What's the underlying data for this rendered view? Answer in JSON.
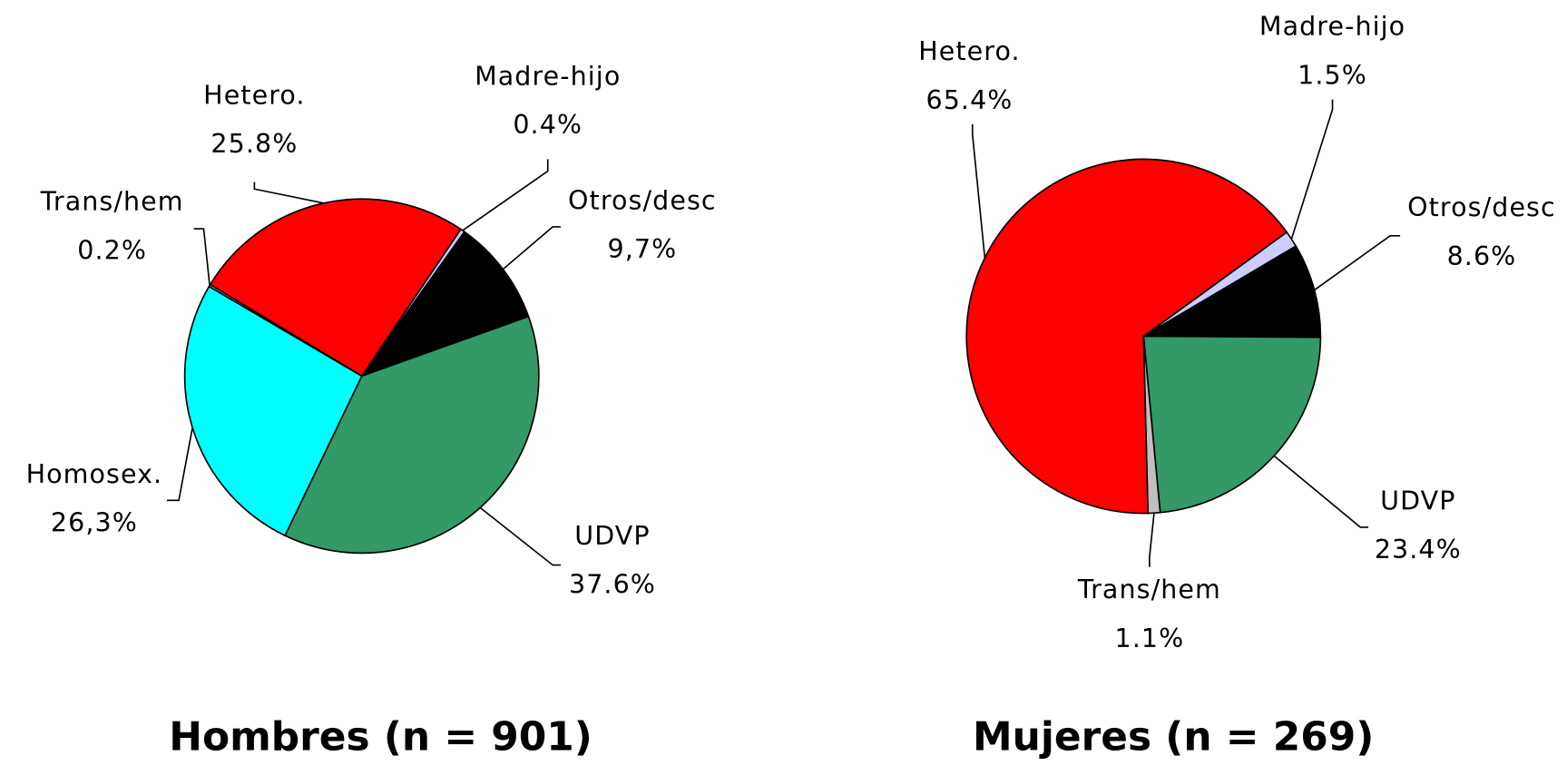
{
  "chart_data": [
    {
      "type": "pie",
      "title": "Hombres (n = 901)",
      "categories": [
        "Madre-hijo",
        "Otros/desc",
        "UDVP",
        "Homosex.",
        "Trans/hem",
        "Hetero."
      ],
      "values": [
        0.4,
        9.7,
        37.6,
        26.3,
        0.2,
        25.8
      ],
      "value_labels": [
        "0.4%",
        "9,7%",
        "37.6%",
        "26,3%",
        "0.2%",
        "25.8%"
      ],
      "colors": [
        "#ccccff",
        "#000000",
        "#339966",
        "#00ffff",
        "#c0c0c0",
        "#ff0000"
      ]
    },
    {
      "type": "pie",
      "title": "Mujeres (n = 269)",
      "categories": [
        "Madre-hijo",
        "Otros/desc",
        "UDVP",
        "Trans/hem",
        "Hetero."
      ],
      "values": [
        1.5,
        8.6,
        23.4,
        1.1,
        65.4
      ],
      "value_labels": [
        "1.5%",
        "8.6%",
        "23.4%",
        "1.1%",
        "65.4%"
      ],
      "colors": [
        "#ccccff",
        "#000000",
        "#339966",
        "#c0c0c0",
        "#ff0000"
      ]
    }
  ]
}
